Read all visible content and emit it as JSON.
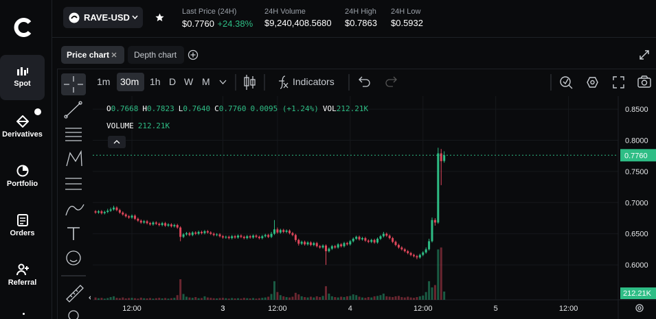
{
  "header": {
    "pair": "RAVE-USD",
    "stats": [
      {
        "label": "Last Price (24H)",
        "value": "$0.7760",
        "change": "+24.38%"
      },
      {
        "label": "24H Volume",
        "value": "$9,240,408.5680"
      },
      {
        "label": "24H High",
        "value": "$0.7863"
      },
      {
        "label": "24H Low",
        "value": "$0.5932"
      }
    ]
  },
  "sidebar": [
    "Spot",
    "Derivatives",
    "Portfolio",
    "Orders",
    "Referral"
  ],
  "tabs": [
    "Price chart",
    "Depth chart"
  ],
  "intervals": [
    "1m",
    "30m",
    "1h",
    "D",
    "W",
    "M"
  ],
  "indicators": "Indicators",
  "chart_data": {
    "type": "candlestick",
    "legend": [
      {
        "label": "O",
        "value": "0.7668"
      },
      {
        "label": "H",
        "value": "0.7823"
      },
      {
        "label": "L",
        "value": "0.7640"
      },
      {
        "label": "C",
        "value": "0.7760"
      }
    ],
    "change": "0.0095 (+1.24%)",
    "volume_name": "VOL",
    "volume_title": "VOLUME",
    "volume_last_label": "212.21K",
    "last_price_label": "0.7760",
    "up_color": "#2ebd85",
    "down_color": "#e0475b",
    "grid": true,
    "x": [
      -18,
      -17.5,
      -17,
      -16.5,
      -16,
      -15.5,
      -15,
      -14.5,
      -14,
      -13.5,
      -13,
      -12.5,
      -12,
      -11.5,
      -11,
      -10.5,
      -10,
      -9.5,
      -9,
      -8.5,
      -8,
      -7.5,
      -7,
      -6.5,
      -6,
      -5.5,
      -5,
      -4.5,
      -4,
      -3.5,
      -3,
      -2.5,
      -2,
      -1.5,
      -1,
      -0.5,
      0,
      0.5,
      1,
      1.5,
      2,
      2.5,
      3,
      3.5,
      4,
      4.5,
      5,
      5.5,
      6,
      6.5,
      7,
      7.5,
      8,
      8.5,
      9,
      9.5,
      10,
      10.5,
      11,
      11.5,
      12,
      12.5,
      13,
      13.5,
      14,
      14.5,
      15,
      15.5,
      16,
      16.5,
      17,
      17.5,
      18,
      18.5,
      19,
      19.5,
      20,
      20.5,
      21,
      21.5,
      22,
      22.5,
      23,
      23.5,
      24,
      24.5,
      25,
      25.5,
      26,
      26.5,
      27,
      27.5,
      28,
      28.5,
      29,
      29.5,
      30,
      30.5,
      31,
      31.5,
      32,
      32.5,
      33,
      33.5,
      34,
      34.5,
      35,
      35.5,
      36,
      36.5,
      37,
      37.5,
      38,
      38.5,
      39,
      39.5
    ],
    "open": [
      0.686,
      0.684,
      0.686,
      0.683,
      0.685,
      0.687,
      0.689,
      0.692,
      0.688,
      0.684,
      0.681,
      0.678,
      0.676,
      0.679,
      0.674,
      0.671,
      0.668,
      0.67,
      0.667,
      0.665,
      0.668,
      0.666,
      0.664,
      0.667,
      0.663,
      0.665,
      0.662,
      0.664,
      0.66,
      0.645,
      0.649,
      0.651,
      0.648,
      0.652,
      0.65,
      0.653,
      0.651,
      0.654,
      0.652,
      0.65,
      0.648,
      0.649,
      0.646,
      0.644,
      0.645,
      0.643,
      0.646,
      0.644,
      0.647,
      0.645,
      0.643,
      0.646,
      0.644,
      0.647,
      0.645,
      0.643,
      0.646,
      0.648,
      0.645,
      0.65,
      0.657,
      0.652,
      0.656,
      0.653,
      0.655,
      0.651,
      0.648,
      0.64,
      0.634,
      0.637,
      0.633,
      0.636,
      0.632,
      0.635,
      0.63,
      0.628,
      0.631,
      0.622,
      0.626,
      0.63,
      0.628,
      0.633,
      0.63,
      0.635,
      0.633,
      0.638,
      0.642,
      0.645,
      0.641,
      0.643,
      0.639,
      0.637,
      0.64,
      0.636,
      0.642,
      0.646,
      0.65,
      0.647,
      0.643,
      0.637,
      0.632,
      0.628,
      0.625,
      0.622,
      0.619,
      0.616,
      0.614,
      0.612,
      0.616,
      0.62,
      0.625,
      0.638,
      0.672,
      0.668,
      0.779,
      0.7668
    ],
    "high": [
      0.688,
      0.688,
      0.688,
      0.687,
      0.69,
      0.692,
      0.695,
      0.694,
      0.69,
      0.686,
      0.683,
      0.68,
      0.681,
      0.681,
      0.676,
      0.673,
      0.672,
      0.672,
      0.669,
      0.67,
      0.67,
      0.668,
      0.669,
      0.669,
      0.667,
      0.667,
      0.666,
      0.666,
      0.662,
      0.651,
      0.653,
      0.653,
      0.654,
      0.654,
      0.655,
      0.655,
      0.656,
      0.656,
      0.654,
      0.652,
      0.651,
      0.651,
      0.648,
      0.647,
      0.647,
      0.648,
      0.648,
      0.649,
      0.649,
      0.647,
      0.648,
      0.648,
      0.649,
      0.649,
      0.647,
      0.648,
      0.65,
      0.65,
      0.653,
      0.672,
      0.66,
      0.658,
      0.658,
      0.657,
      0.657,
      0.653,
      0.65,
      0.642,
      0.639,
      0.639,
      0.638,
      0.638,
      0.637,
      0.637,
      0.632,
      0.633,
      0.633,
      0.628,
      0.632,
      0.632,
      0.635,
      0.635,
      0.637,
      0.637,
      0.64,
      0.644,
      0.647,
      0.647,
      0.645,
      0.645,
      0.641,
      0.642,
      0.642,
      0.644,
      0.648,
      0.653,
      0.652,
      0.649,
      0.645,
      0.639,
      0.634,
      0.63,
      0.627,
      0.624,
      0.621,
      0.618,
      0.616,
      0.618,
      0.622,
      0.628,
      0.642,
      0.676,
      0.675,
      0.788,
      0.786,
      0.7823
    ],
    "low": [
      0.682,
      0.682,
      0.681,
      0.681,
      0.683,
      0.685,
      0.687,
      0.686,
      0.682,
      0.679,
      0.676,
      0.674,
      0.674,
      0.672,
      0.669,
      0.666,
      0.666,
      0.665,
      0.663,
      0.663,
      0.664,
      0.662,
      0.662,
      0.661,
      0.661,
      0.66,
      0.66,
      0.658,
      0.638,
      0.643,
      0.647,
      0.646,
      0.646,
      0.648,
      0.648,
      0.649,
      0.649,
      0.65,
      0.648,
      0.646,
      0.646,
      0.644,
      0.642,
      0.642,
      0.641,
      0.641,
      0.642,
      0.642,
      0.643,
      0.641,
      0.641,
      0.642,
      0.642,
      0.643,
      0.641,
      0.641,
      0.644,
      0.643,
      0.643,
      0.648,
      0.65,
      0.65,
      0.651,
      0.651,
      0.649,
      0.646,
      0.637,
      0.631,
      0.632,
      0.631,
      0.631,
      0.63,
      0.63,
      0.628,
      0.626,
      0.626,
      0.6,
      0.62,
      0.624,
      0.626,
      0.626,
      0.628,
      0.628,
      0.631,
      0.631,
      0.636,
      0.64,
      0.639,
      0.639,
      0.637,
      0.635,
      0.635,
      0.634,
      0.634,
      0.64,
      0.644,
      0.645,
      0.641,
      0.635,
      0.63,
      0.626,
      0.623,
      0.62,
      0.617,
      0.614,
      0.612,
      0.609,
      0.61,
      0.614,
      0.618,
      0.623,
      0.636,
      0.663,
      0.666,
      0.728,
      0.764
    ],
    "close": [
      0.684,
      0.686,
      0.683,
      0.685,
      0.687,
      0.689,
      0.692,
      0.688,
      0.684,
      0.681,
      0.678,
      0.676,
      0.679,
      0.674,
      0.671,
      0.668,
      0.67,
      0.667,
      0.665,
      0.668,
      0.666,
      0.664,
      0.667,
      0.663,
      0.665,
      0.662,
      0.664,
      0.66,
      0.645,
      0.649,
      0.651,
      0.648,
      0.652,
      0.65,
      0.653,
      0.651,
      0.654,
      0.652,
      0.65,
      0.648,
      0.649,
      0.646,
      0.644,
      0.645,
      0.643,
      0.646,
      0.644,
      0.647,
      0.645,
      0.643,
      0.646,
      0.644,
      0.647,
      0.645,
      0.643,
      0.646,
      0.648,
      0.645,
      0.65,
      0.657,
      0.652,
      0.656,
      0.653,
      0.655,
      0.651,
      0.648,
      0.64,
      0.634,
      0.637,
      0.633,
      0.636,
      0.632,
      0.635,
      0.63,
      0.628,
      0.631,
      0.622,
      0.626,
      0.63,
      0.628,
      0.633,
      0.63,
      0.635,
      0.633,
      0.638,
      0.642,
      0.645,
      0.641,
      0.643,
      0.639,
      0.637,
      0.64,
      0.636,
      0.642,
      0.646,
      0.65,
      0.647,
      0.643,
      0.637,
      0.632,
      0.628,
      0.625,
      0.622,
      0.619,
      0.616,
      0.614,
      0.612,
      0.616,
      0.62,
      0.625,
      0.638,
      0.672,
      0.668,
      0.779,
      0.7665,
      0.776
    ],
    "volume": [
      60000,
      40000,
      50000,
      30000,
      45000,
      70000,
      90000,
      50000,
      40000,
      60000,
      35000,
      45000,
      50000,
      40000,
      30000,
      55000,
      40000,
      35000,
      45000,
      30000,
      40000,
      50000,
      35000,
      45000,
      30000,
      40000,
      50000,
      120000,
      530000,
      150000,
      80000,
      60000,
      50000,
      70000,
      40000,
      45000,
      90000,
      60000,
      50000,
      40000,
      35000,
      45000,
      50000,
      40000,
      30000,
      45000,
      35000,
      40000,
      30000,
      50000,
      40000,
      35000,
      45000,
      30000,
      40000,
      50000,
      60000,
      80000,
      150000,
      480000,
      200000,
      120000,
      90000,
      70000,
      60000,
      80000,
      180000,
      140000,
      90000,
      70000,
      60000,
      80000,
      60000,
      90000,
      70000,
      100000,
      350000,
      160000,
      90000,
      70000,
      60000,
      80000,
      70000,
      90000,
      100000,
      140000,
      120000,
      80000,
      60000,
      50000,
      70000,
      60000,
      90000,
      100000,
      120000,
      160000,
      90000,
      80000,
      70000,
      90000,
      100000,
      70000,
      60000,
      80000,
      60000,
      50000,
      70000,
      90000,
      110000,
      200000,
      480000,
      320000,
      380000,
      1300000,
      1350000,
      212210
    ],
    "xlim": [
      -18.46,
      68.2
    ],
    "xticks": [
      {
        "value": -12,
        "label": "12:00"
      },
      3,
      {
        "value": 3,
        "label": "3"
      },
      {
        "value": 12,
        "label": "12:00"
      },
      {
        "value": 24,
        "label": "4"
      },
      {
        "value": 36,
        "label": "12:00"
      },
      {
        "value": 48,
        "label": "5"
      },
      {
        "value": 60,
        "label": "12:00"
      }
    ],
    "ylim": [
      0.544,
      0.871
    ],
    "yticks": [
      {
        "value": 0.85,
        "label": "0.8500"
      },
      {
        "value": 0.8,
        "label": "0.8000"
      },
      {
        "value": 0.75,
        "label": "0.7500"
      },
      {
        "value": 0.7,
        "label": "0.7000"
      },
      {
        "value": 0.65,
        "label": "0.6500"
      },
      {
        "value": 0.6,
        "label": "0.6000"
      }
    ],
    "volume_ylim": [
      0,
      1770000
    ]
  }
}
